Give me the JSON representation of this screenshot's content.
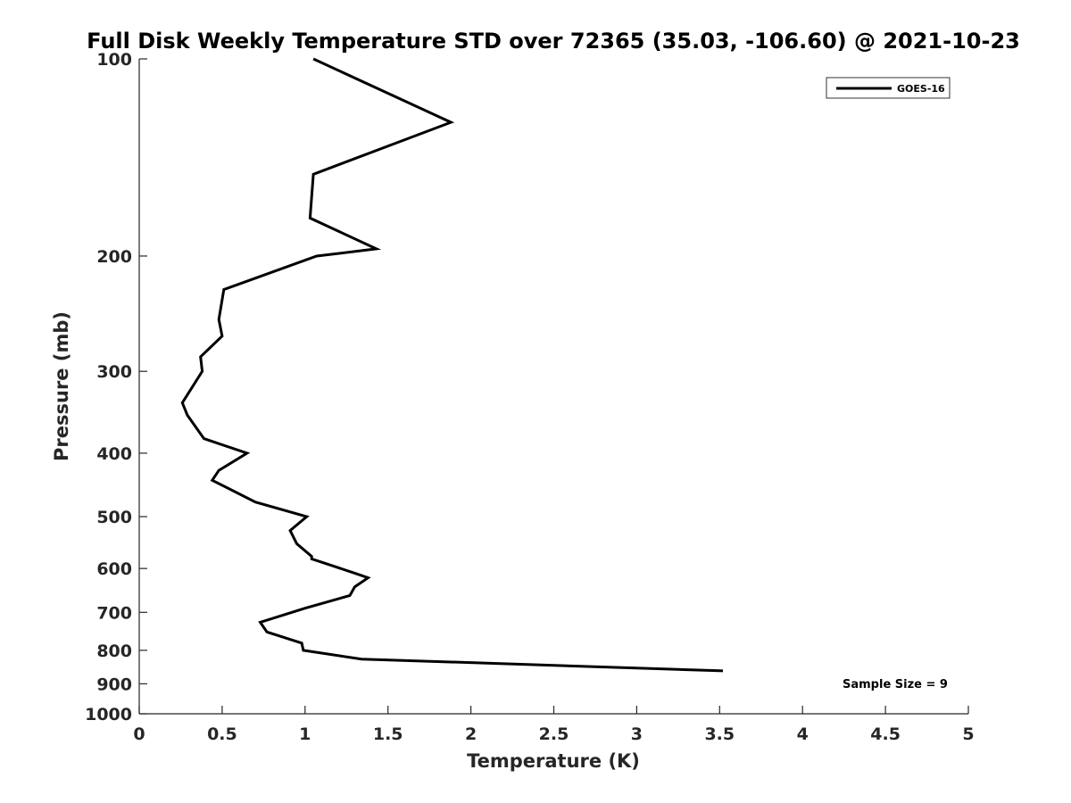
{
  "chart_data": {
    "type": "line",
    "title": "Full Disk Weekly Temperature STD over 72365 (35.03, -106.60) @ 2021-10-23",
    "xlabel": "Temperature (K)",
    "ylabel": "Pressure (mb)",
    "xlim": [
      0,
      5
    ],
    "ylim": [
      100,
      1000
    ],
    "yscale": "log",
    "y_reversed": true,
    "xticks": [
      0,
      0.5,
      1,
      1.5,
      2,
      2.5,
      3,
      3.5,
      4,
      4.5,
      5
    ],
    "xtick_labels": [
      "0",
      "0.5",
      "1",
      "1.5",
      "2",
      "2.5",
      "3",
      "3.5",
      "4",
      "4.5",
      "5"
    ],
    "yticks": [
      100,
      200,
      300,
      400,
      500,
      600,
      700,
      800,
      900,
      1000
    ],
    "ytick_labels": [
      "100",
      "200",
      "300",
      "400",
      "500",
      "600",
      "700",
      "800",
      "900",
      "1000"
    ],
    "grid": false,
    "legend_position": "top-right",
    "annotation": "Sample Size = 9",
    "series": [
      {
        "name": "GOES-16",
        "color": "#000000",
        "x": [
          1.05,
          1.88,
          1.05,
          1.03,
          1.43,
          1.07,
          0.51,
          0.48,
          0.5,
          0.37,
          0.38,
          0.26,
          0.29,
          0.39,
          0.65,
          0.48,
          0.44,
          0.7,
          1.01,
          0.91,
          0.95,
          1.04,
          1.04,
          1.3,
          1.38,
          1.3,
          1.27,
          1.0,
          0.73,
          0.77,
          0.98,
          0.99,
          1.34,
          3.52
        ],
        "y": [
          100,
          125,
          150,
          175,
          195,
          200,
          225,
          250,
          265,
          285,
          300,
          335,
          350,
          380,
          400,
          425,
          440,
          475,
          500,
          525,
          550,
          575,
          580,
          610,
          620,
          640,
          660,
          690,
          725,
          750,
          780,
          800,
          825,
          860
        ]
      }
    ]
  }
}
